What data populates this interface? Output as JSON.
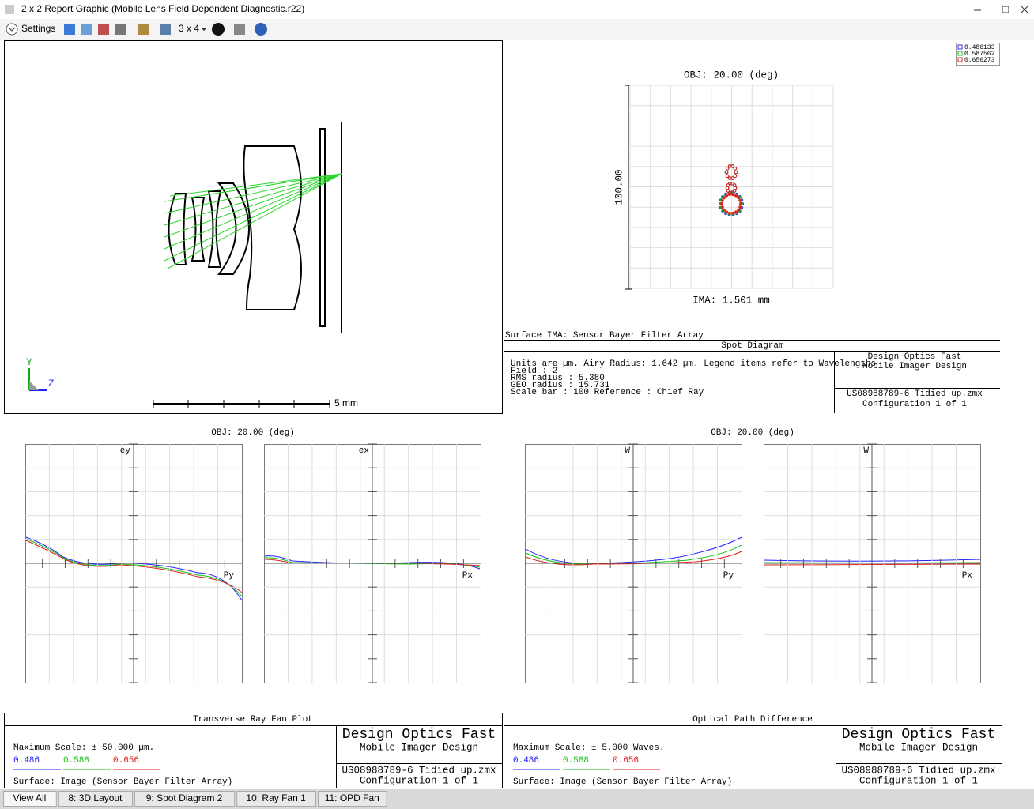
{
  "window": {
    "title": "2 x 2 Report Graphic (Mobile Lens Field Dependent Diagnostic.r22)"
  },
  "toolbar": {
    "settings": "Settings",
    "layout": "3 x 4"
  },
  "layout_3d": {
    "scale_label": "5 mm",
    "axis_y": "Y",
    "axis_z": "Z"
  },
  "spot": {
    "obj": "OBJ: 20.00 (deg)",
    "scale": "100.00",
    "ima": "IMA: 1.501 mm",
    "legend": [
      {
        "name": "0.486133",
        "color": "#3030ff"
      },
      {
        "name": "0.587562",
        "color": "#10c010"
      },
      {
        "name": "0.656273",
        "color": "#e02020"
      }
    ],
    "surface": "Surface IMA: Sensor Bayer Filter Array",
    "title": "Spot Diagram",
    "info": [
      "Units are µm.        Airy Radius: 1.642 µm. Legend items refer to Wavelengths",
      "Field    :       2",
      "RMS radius :    5.380",
      "GEO radius :   15.731",
      "Scale bar  : 100      Reference  : Chief Ray"
    ],
    "company": "Design Optics Fast",
    "subtitle": "Mobile Imager Design",
    "file": "US08988789-6 Tidied up.zmx",
    "config": "Configuration 1 of 1"
  },
  "ray_fan": {
    "obj": "OBJ: 20.00 (deg)",
    "plots": [
      {
        "y": "ey",
        "x": "Py"
      },
      {
        "y": "ex",
        "x": "Px"
      }
    ],
    "title": "Transverse Ray Fan Plot",
    "max_scale": "Maximum Scale: ± 50.000 µm.",
    "wavelengths": [
      {
        "name": "0.486",
        "color": "#2020ff"
      },
      {
        "name": "0.588",
        "color": "#10c010"
      },
      {
        "name": "0.656",
        "color": "#e02020"
      }
    ],
    "surface": "Surface: Image (Sensor Bayer Filter Array)",
    "company": "Design Optics Fast",
    "subtitle": "Mobile Imager Design",
    "file": "US08988789-6 Tidied up.zmx",
    "config": "Configuration 1 of 1"
  },
  "opd": {
    "obj": "OBJ: 20.00 (deg)",
    "plots": [
      {
        "y": "W",
        "x": "Py"
      },
      {
        "y": "W",
        "x": "Px"
      }
    ],
    "title": "Optical Path Difference",
    "max_scale": "Maximum Scale: ± 5.000 Waves.",
    "wavelengths": [
      {
        "name": "0.486",
        "color": "#2020ff"
      },
      {
        "name": "0.588",
        "color": "#10c010"
      },
      {
        "name": "0.656",
        "color": "#e02020"
      }
    ],
    "surface": "Surface: Image (Sensor Bayer Filter Array)",
    "company": "Design Optics Fast",
    "subtitle": "Mobile Imager Design",
    "file": "US08988789-6 Tidied up.zmx",
    "config": "Configuration 1 of 1"
  },
  "tabs": [
    "View All",
    "8: 3D Layout",
    "9: Spot Diagram 2",
    "10: Ray Fan 1",
    "11: OPD Fan"
  ]
}
